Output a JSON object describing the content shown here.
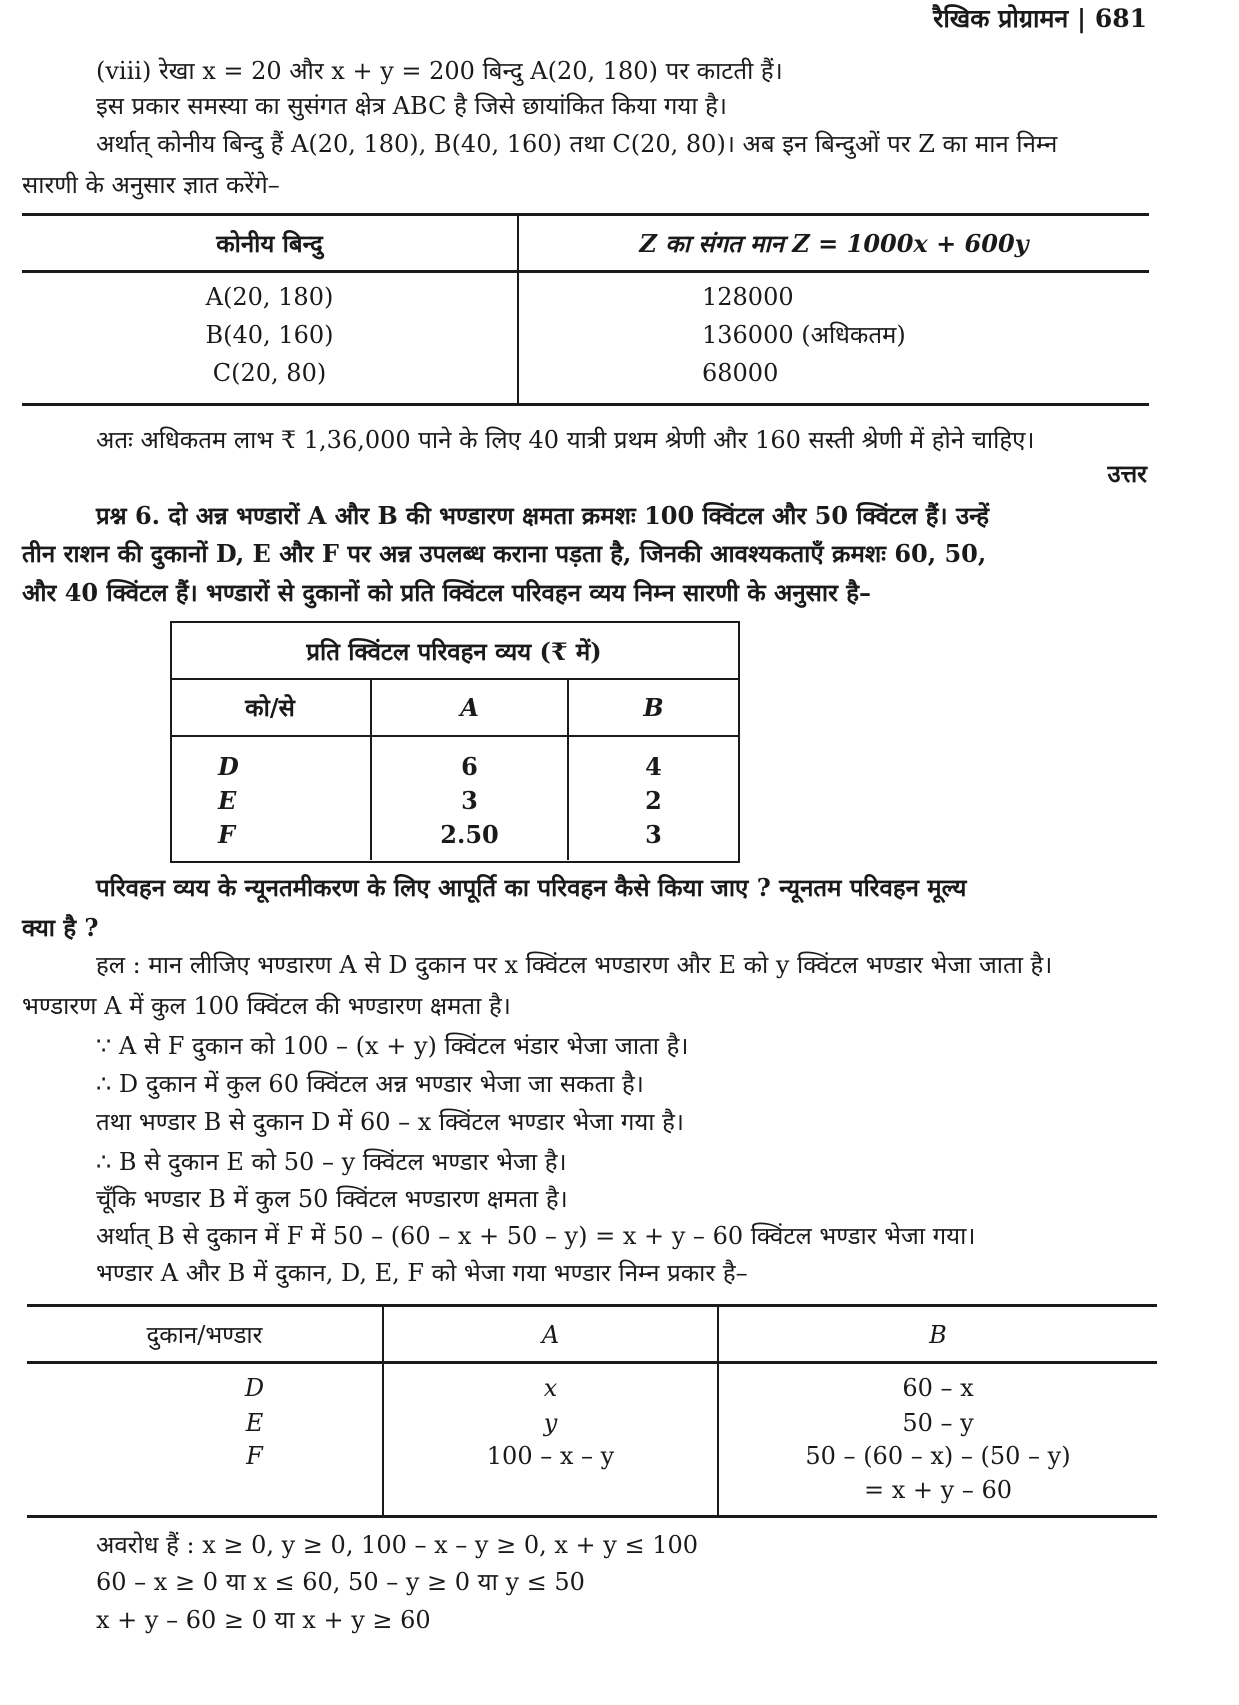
{
  "header": {
    "title": "रैखिक प्रोग्रामन",
    "separator": "|",
    "page_number": "681"
  },
  "para1": [
    "(viii) रेखा x = 20 और x + y = 200 बिन्दु A(20, 180) पर काटती हैं।",
    "इस प्रकार समस्या का सुसंगत क्षेत्र ABC है जिसे छायांकित किया गया है।",
    "अर्थात् कोनीय बिन्दु हैं A(20, 180), B(40, 160) तथा C(20, 80)। अब इन बिन्दुओं पर Z का मान निम्न",
    "सारणी के अनुसार ज्ञात करेंगे–"
  ],
  "table1": {
    "headers": [
      "कोनीय बिन्दु",
      "Z का संगत मान Z = 1000x + 600y"
    ],
    "rows": [
      [
        "A(20, 180)",
        "128000"
      ],
      [
        "B(40, 160)",
        "136000 (अधिकतम)"
      ],
      [
        "C(20, 80)",
        "68000"
      ]
    ]
  },
  "conclusion": "अतः अधिकतम लाभ ₹ 1,36,000 पाने के लिए 40 यात्री प्रथम श्रेणी और 160 सस्ती श्रेणी में होने चाहिए।",
  "answer_label": "उत्तर",
  "question6": [
    "प्रश्न 6. दो अन्न भण्डारों A और B की भण्डारण क्षमता क्रमशः 100 क्विंटल और 50 क्विंटल हैं। उन्हें",
    "तीन राशन की दुकानों D, E और F पर अन्न उपलब्ध कराना पड़ता है, जिनकी आवश्यकताएँ क्रमशः 60, 50,",
    "और 40 क्विंटल हैं। भण्डारों से दुकानों को प्रति क्विंटल परिवहन व्यय निम्न सारणी के अनुसार है–"
  ],
  "table2": {
    "title": "प्रति क्विंटल परिवहन व्यय (₹ में)",
    "headers": [
      "को/से",
      "A",
      "B"
    ],
    "rows": [
      [
        "D",
        "6",
        "4"
      ],
      [
        "E",
        "3",
        "2"
      ],
      [
        "F",
        "2.50",
        "3"
      ]
    ]
  },
  "question6b": [
    "परिवहन व्यय के न्यूनतमीकरण के लिए आपूर्ति का परिवहन कैसे किया जाए ? न्यूनतम परिवहन मूल्य",
    "क्या है ?"
  ],
  "solution": [
    "हल : मान लीजिए भण्डारण A से D दुकान पर x क्विंटल भण्डारण और E को y क्विंटल भण्डार भेजा जाता है।",
    "भण्डारण A में कुल 100 क्विंटल की भण्डारण क्षमता है।",
    "∵ A से F दुकान को 100 – (x + y) क्विंटल भंडार भेजा जाता है।",
    "∴ D दुकान में कुल 60 क्विंटल अन्न भण्डार भेजा जा सकता है।",
    "तथा भण्डार B से दुकान D में 60 – x क्विंटल भण्डार भेजा गया है।",
    "∴ B से दुकान E को 50 – y क्विंटल भण्डार भेजा है।",
    "चूँकि भण्डार B में कुल 50 क्विंटल भण्डारण क्षमता है।",
    "अर्थात् B से दुकान में F में 50 – (60 – x + 50 – y) = x + y – 60 क्विंटल भण्डार भेजा गया।",
    "भण्डार A और B में दुकान, D, E, F को भेजा गया भण्डार निम्न प्रकार है–"
  ],
  "table3": {
    "headers": [
      "दुकान/भण्डार",
      "A",
      "B"
    ],
    "rows": [
      [
        "D",
        "x",
        "60 – x"
      ],
      [
        "E",
        "y",
        "50 – y"
      ],
      [
        "F",
        "100 – x – y",
        "50 – (60 – x) – (50 – y)"
      ],
      [
        "",
        "",
        "= x + y – 60"
      ]
    ]
  },
  "constraints": [
    "अवरोध हैं : x ≥ 0, y ≥ 0, 100 – x – y ≥ 0, x + y ≤ 100",
    "60 – x ≥ 0 या x ≤ 60, 50 – y ≥ 0 या y ≤ 50",
    "x + y – 60 ≥ 0 या x + y ≥ 60"
  ]
}
